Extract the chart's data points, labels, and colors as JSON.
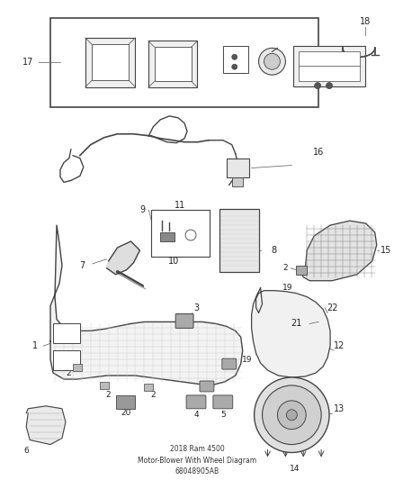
{
  "title": "2018 Ram 4500\nMotor-Blower With Wheel Diagram\n68048905AB",
  "bg_color": "#ffffff",
  "line_color": "#444444",
  "label_color": "#222222",
  "fig_width": 4.38,
  "fig_height": 5.33,
  "dpi": 100
}
